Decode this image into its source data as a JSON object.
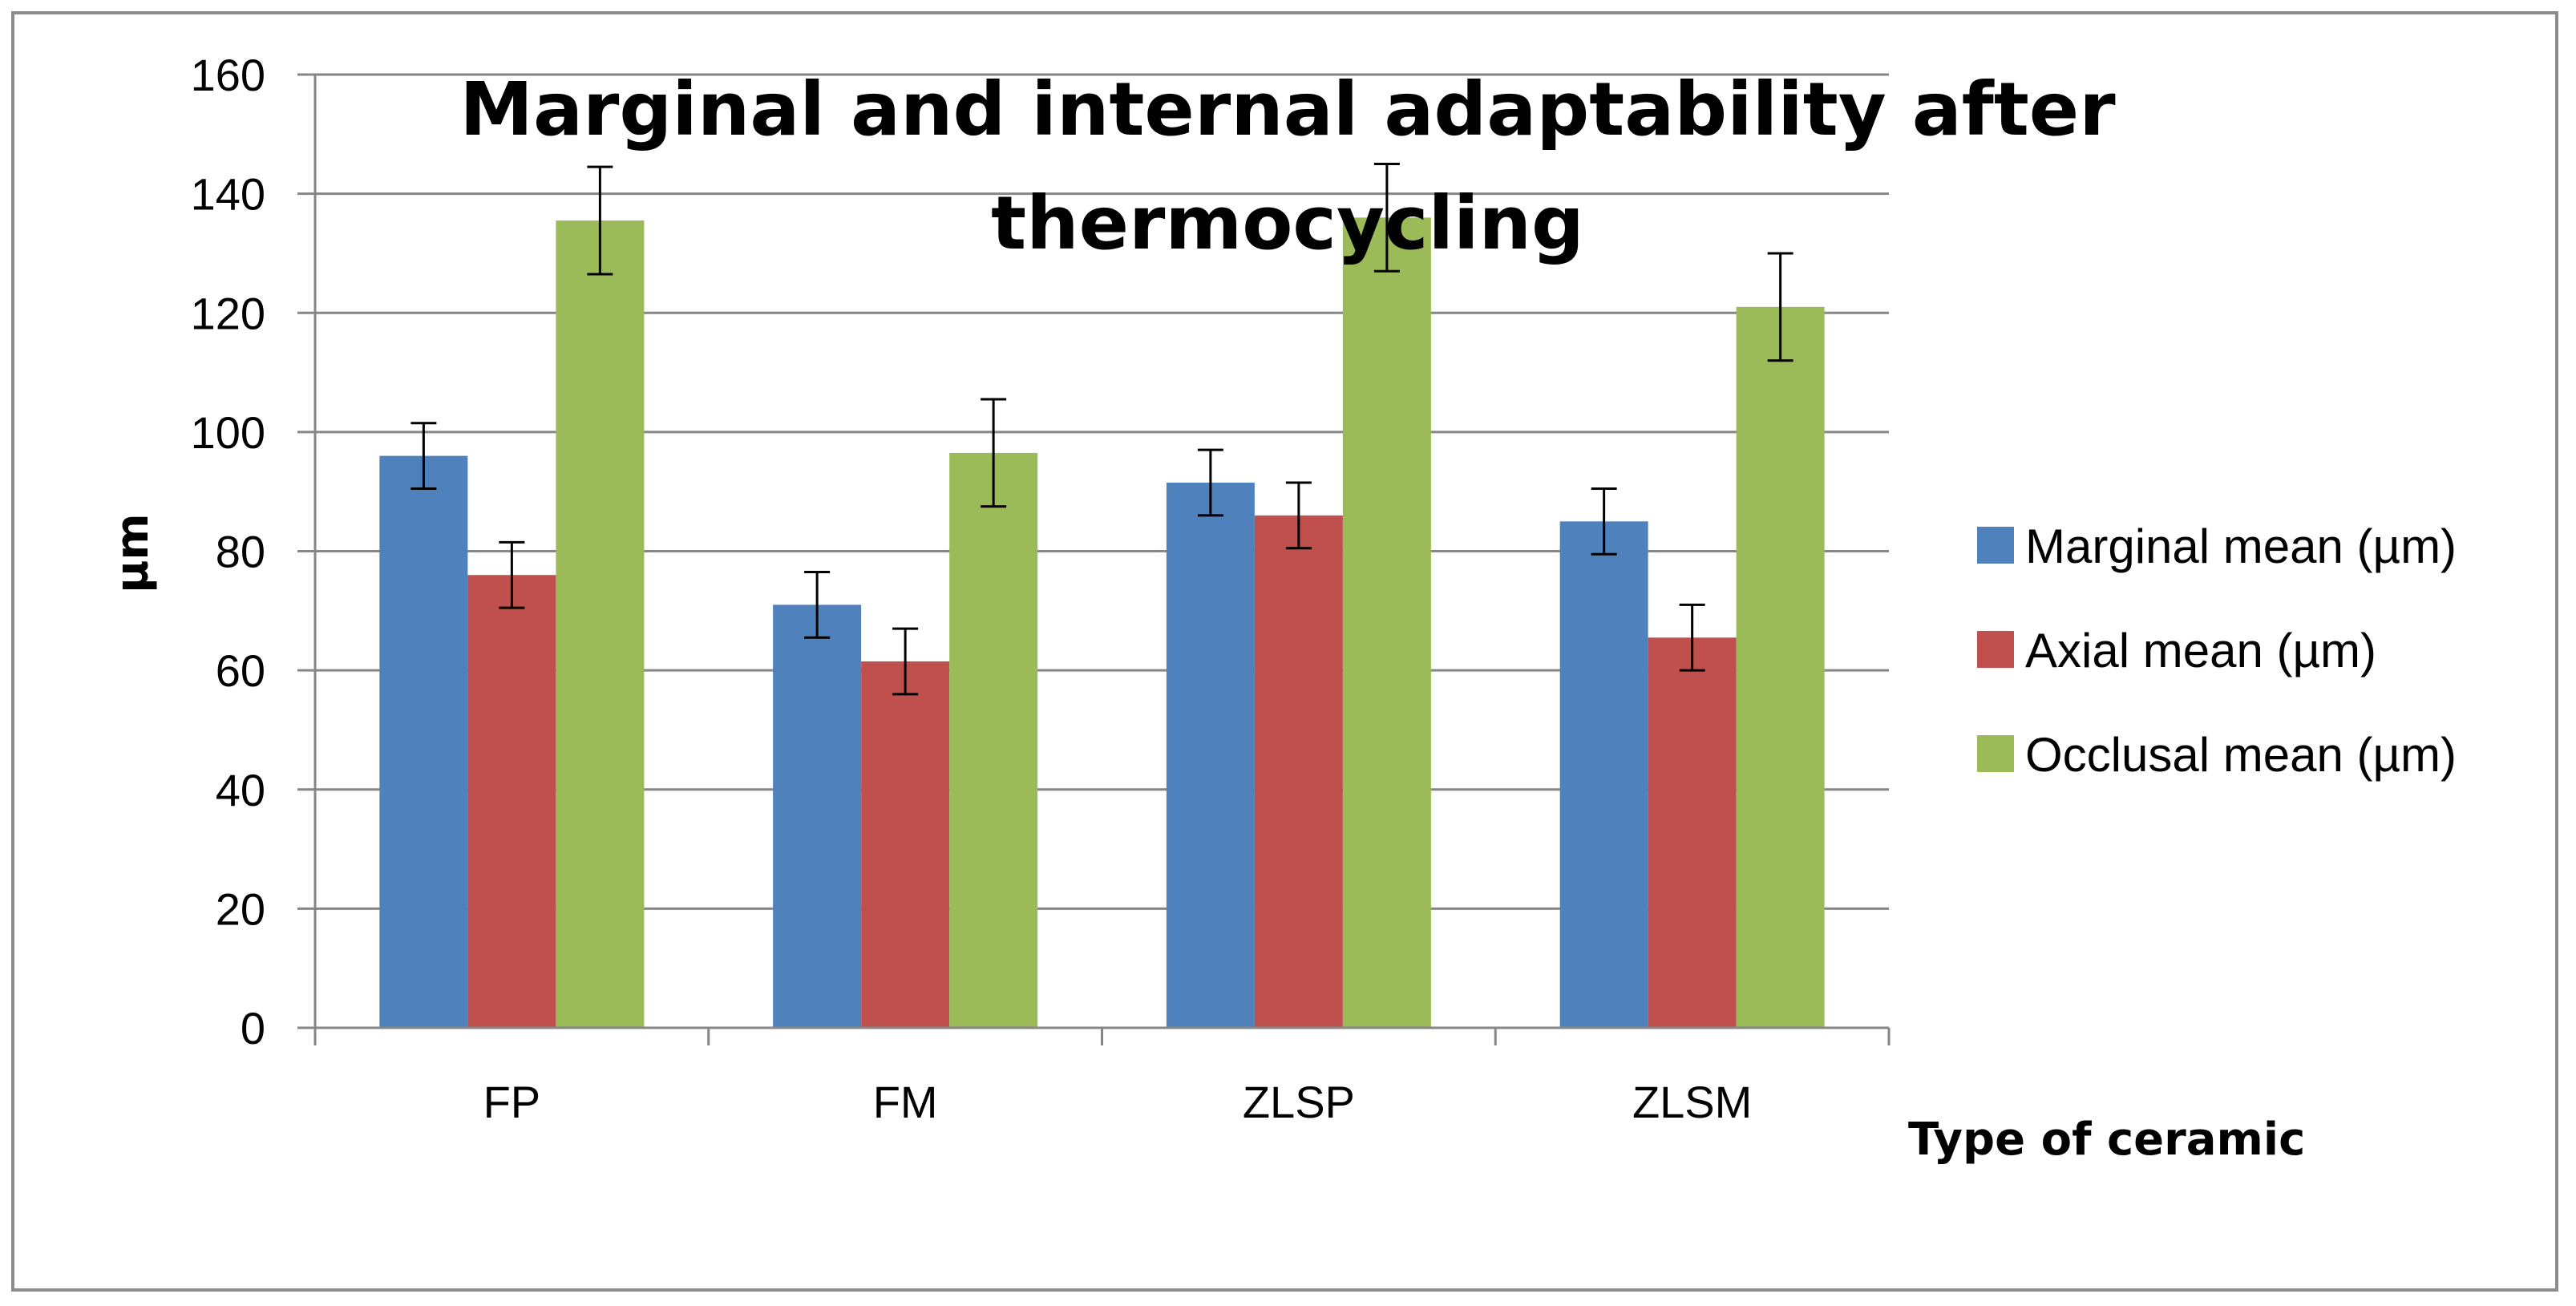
{
  "chart_data": {
    "type": "bar",
    "title_lines": [
      "Marginal and internal adaptability after",
      "thermocycling"
    ],
    "xlabel": "Type of ceramic",
    "ylabel": "µm",
    "ylim": [
      0,
      160
    ],
    "yticks": [
      0,
      20,
      40,
      60,
      80,
      100,
      120,
      140,
      160
    ],
    "grid": true,
    "legend_position": "right",
    "categories": [
      "FP",
      "FM",
      "ZLSP",
      "ZLSM"
    ],
    "series": [
      {
        "name": "Marginal mean (µm)",
        "color": "#4f81bd",
        "values": [
          96,
          71,
          91.5,
          85
        ],
        "errors": [
          5.5,
          5.5,
          5.5,
          5.5
        ]
      },
      {
        "name": "Axial mean (µm)",
        "color": "#c0504d",
        "values": [
          76,
          61.5,
          86,
          65.5
        ],
        "errors": [
          5.5,
          5.5,
          5.5,
          5.5
        ]
      },
      {
        "name": "Occlusal mean (µm)",
        "color": "#9bbb59",
        "values": [
          135.5,
          96.5,
          136,
          121
        ],
        "errors": [
          9,
          9,
          9,
          9
        ]
      }
    ]
  }
}
